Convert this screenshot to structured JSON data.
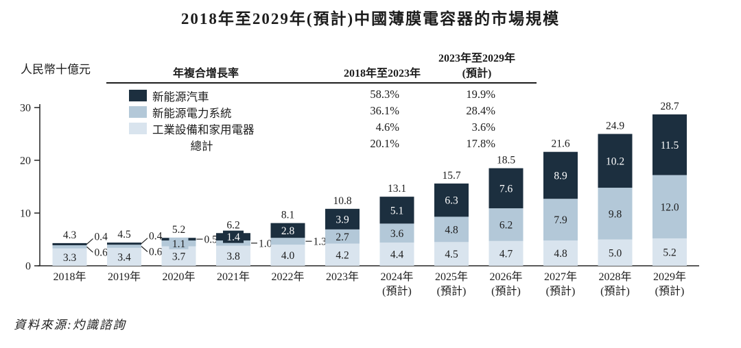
{
  "title": "2018年至2029年(預計)中國薄膜電容器的市場規模",
  "y_axis_unit": "人民幣十億元",
  "source": "資料來源:灼識諮詢",
  "colors": {
    "nev_dark": "#1c2f3f",
    "power_medium": "#b3c8d8",
    "industrial_light": "#d9e4ee",
    "axis": "#222222",
    "text": "#1c1c1c"
  },
  "cagr_table": {
    "col_cagr": "年複合增長率",
    "col_2018_2023": "2018年至2023年",
    "col_2023_2029_line1": "2023年至2029年",
    "col_2023_2029_line2": "(預計)",
    "rows": [
      {
        "label": "新能源汽車",
        "v1": "58.3%",
        "v2": "19.9%"
      },
      {
        "label": "新能源電力系統",
        "v1": "36.1%",
        "v2": "28.4%"
      },
      {
        "label": "工業設備和家用電器",
        "v1": "4.6%",
        "v2": "3.6%"
      },
      {
        "label": "總計",
        "v1": "20.1%",
        "v2": "17.8%"
      }
    ]
  },
  "chart_data": {
    "type": "bar",
    "stacked": true,
    "title": "2018年至2029年(預計)中國薄膜電容器的市場規模",
    "ylabel": "人民幣十億元",
    "ylim": [
      0,
      30
    ],
    "yticks": [
      0,
      10,
      20,
      30
    ],
    "grid": false,
    "legend_position": "top-left-table",
    "categories": [
      "2018年",
      "2019年",
      "2020年",
      "2021年",
      "2022年",
      "2023年",
      "2024年",
      "2025年",
      "2026年",
      "2027年",
      "2028年",
      "2029年"
    ],
    "category_sublabels": [
      "",
      "",
      "",
      "",
      "",
      "",
      "(預計)",
      "(預計)",
      "(預計)",
      "(預計)",
      "(預計)",
      "(預計)"
    ],
    "series": [
      {
        "name": "工業設備和家用電器",
        "key": "industrial_light",
        "values": [
          3.3,
          3.4,
          3.7,
          3.8,
          4.0,
          4.2,
          4.4,
          4.5,
          4.7,
          4.8,
          5.0,
          5.2
        ]
      },
      {
        "name": "新能源電力系統",
        "key": "power_medium",
        "values": [
          0.6,
          0.6,
          1.1,
          1.0,
          1.3,
          2.7,
          3.6,
          4.8,
          6.2,
          7.9,
          9.8,
          12.0
        ]
      },
      {
        "name": "新能源汽車",
        "key": "nev_dark",
        "values": [
          0.4,
          0.4,
          0.5,
          1.4,
          2.8,
          3.9,
          5.1,
          6.3,
          7.6,
          8.9,
          10.2,
          11.5
        ]
      }
    ],
    "totals": [
      4.3,
      4.5,
      5.2,
      6.2,
      8.1,
      10.8,
      13.1,
      15.7,
      18.5,
      21.6,
      24.9,
      28.7
    ],
    "label_layout": {
      "dark_outside": {
        "0": "slant-up",
        "1": "slant-up",
        "2": "dash"
      },
      "medium_outside": {
        "0": "slant-down",
        "1": "slant-down",
        "3": "dash",
        "4": "dash"
      },
      "dark_bg_label": [
        3
      ],
      "medium_bg_label": [
        2
      ]
    }
  }
}
